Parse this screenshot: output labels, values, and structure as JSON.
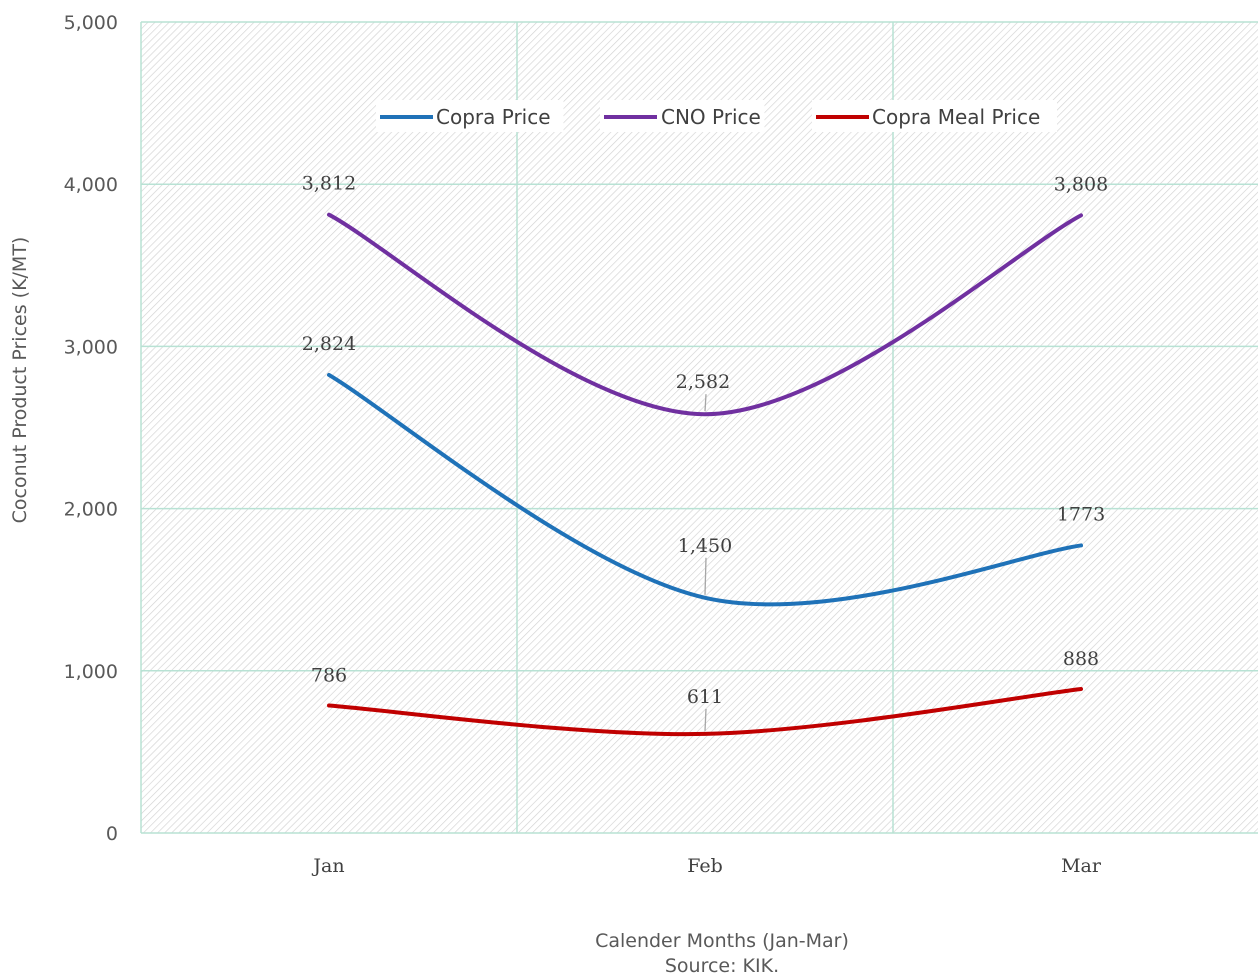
{
  "chart_data": {
    "type": "line",
    "categories": [
      "Jan",
      "Feb",
      "Mar"
    ],
    "ylim": [
      0,
      5000
    ],
    "yticks": [
      "0",
      "1,000",
      "2,000",
      "3,000",
      "4,000",
      "5,000"
    ],
    "ytick_values": [
      0,
      1000,
      2000,
      3000,
      4000,
      5000
    ],
    "xlabel": "Calender Months (Jan-Mar)",
    "source": "Source: KIK.",
    "ylabel": "Coconut Product Prices (K/MT)",
    "grid": true,
    "legend_position": "top",
    "plot_background": "hatched",
    "series": [
      {
        "name": "Copra Price",
        "color": "#1F72B8",
        "values": [
          2824,
          1450,
          1773
        ],
        "labels": [
          "2,824",
          "1,450",
          "1773"
        ]
      },
      {
        "name": "CNO Price",
        "color": "#7030A0",
        "values": [
          3812,
          2582,
          3808
        ],
        "labels": [
          "3,812",
          "2,582",
          "3,808"
        ]
      },
      {
        "name": "Copra Meal Price",
        "color": "#C00000",
        "values": [
          786,
          611,
          888
        ],
        "labels": [
          "786",
          "611",
          "888"
        ]
      }
    ]
  }
}
